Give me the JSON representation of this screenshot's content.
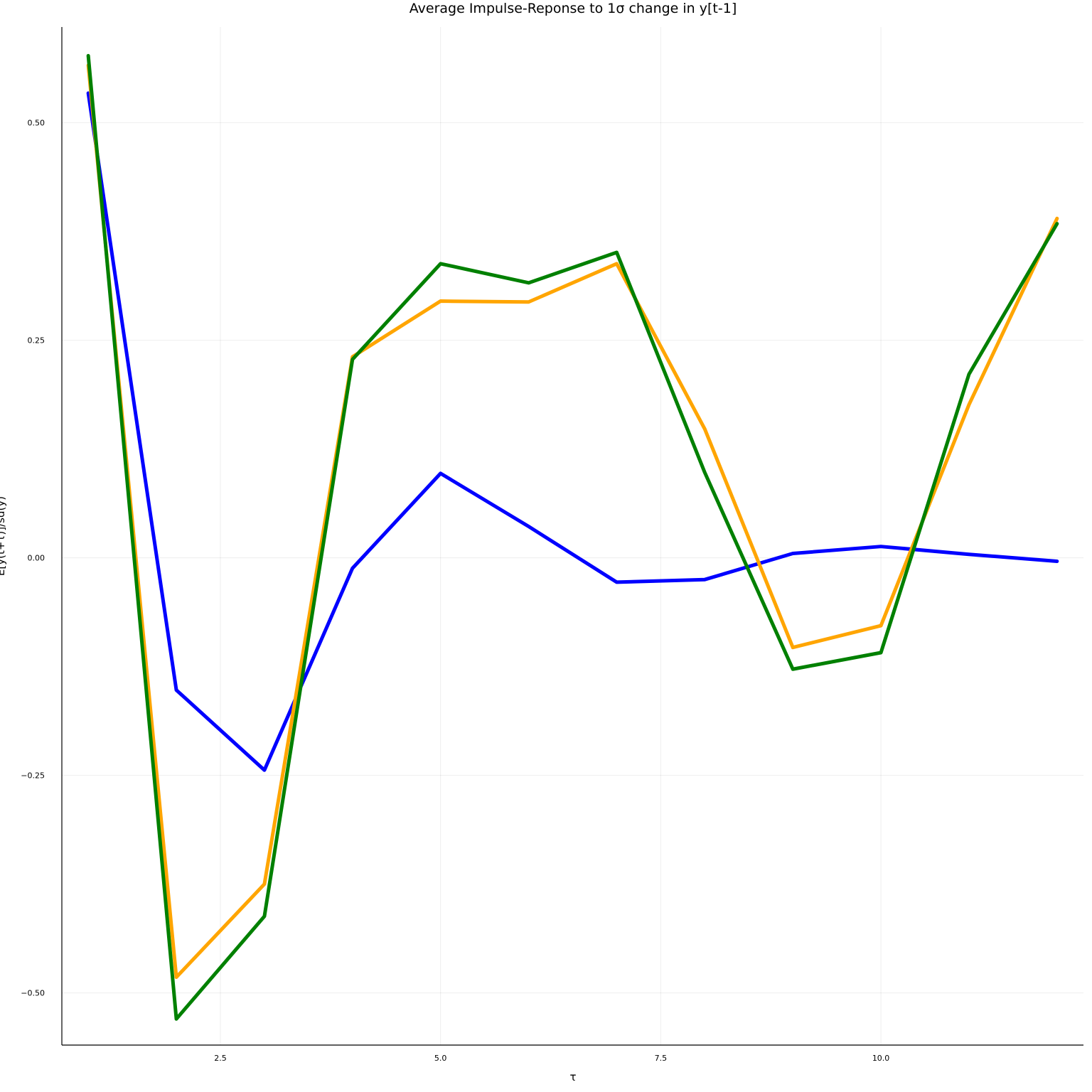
{
  "chart_data": {
    "type": "line",
    "title": "Average Impulse-Reponse to 1σ change in y[t-1]",
    "xlabel": "τ",
    "ylabel": "E[y(t+τ)]/sd(y)",
    "xlim": [
      0.7,
      12.3
    ],
    "ylim": [
      -0.56,
      0.61
    ],
    "x_ticks": [
      2.5,
      5.0,
      7.5,
      10.0
    ],
    "x_tick_labels": [
      "2.5",
      "5.0",
      "7.5",
      "10.0"
    ],
    "y_ticks": [
      -0.5,
      -0.25,
      0.0,
      0.25,
      0.5
    ],
    "y_tick_labels": [
      "−0.50",
      "−0.25",
      "0.00",
      "0.25",
      "0.50"
    ],
    "grid": true,
    "legend": "none",
    "x": [
      1,
      2,
      3,
      4,
      5,
      6,
      7,
      8,
      9,
      10,
      11,
      12
    ],
    "series": [
      {
        "color": "#0000ff",
        "values": [
          0.534,
          -0.152,
          -0.244,
          -0.012,
          0.097,
          0.036,
          -0.028,
          -0.025,
          0.005,
          0.013,
          0.004,
          -0.004
        ]
      },
      {
        "color": "#ffa500",
        "values": [
          0.566,
          -0.482,
          -0.375,
          0.231,
          0.295,
          0.294,
          0.338,
          0.148,
          -0.103,
          -0.078,
          0.176,
          0.39
        ]
      },
      {
        "color": "#008000",
        "values": [
          0.577,
          -0.53,
          -0.412,
          0.228,
          0.338,
          0.316,
          0.351,
          0.098,
          -0.128,
          -0.109,
          0.211,
          0.384
        ]
      }
    ]
  }
}
